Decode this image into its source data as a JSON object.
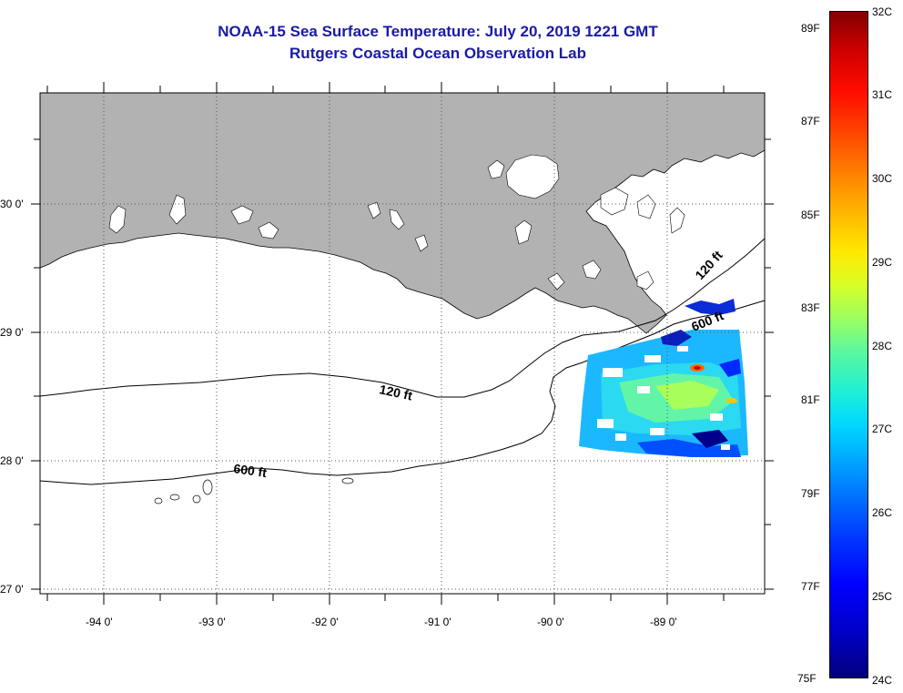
{
  "title": {
    "line1": "NOAA-15 Sea Surface Temperature:  July 20, 2019 1221 GMT",
    "line2": "Rutgers Coastal Ocean Observation Lab"
  },
  "map": {
    "lat_labels": [
      "30 0'",
      "29 0'",
      "28 0'",
      "27 0'"
    ],
    "lon_labels": [
      "-94 0'",
      "-93 0'",
      "-92 0'",
      "-91 0'",
      "-90 0'",
      "-89 0'"
    ],
    "contour_labels": {
      "c120_west": "120 ft",
      "c600_west": "600 ft",
      "c120_east": "120 ft",
      "c600_east": "600 ft"
    },
    "colors": {
      "land": "#b2b2b2",
      "water": "#ffffff",
      "grid": "#555555"
    }
  },
  "colorbar": {
    "fahrenheit": [
      "89F",
      "87F",
      "85F",
      "83F",
      "81F",
      "79F",
      "77F",
      "75F"
    ],
    "celsius": [
      "32C",
      "31C",
      "30C",
      "29C",
      "28C",
      "27C",
      "26C",
      "25C",
      "24C"
    ],
    "colors": {
      "min": "#00007f",
      "mid": "#1ef0d6",
      "max": "#840000"
    }
  }
}
